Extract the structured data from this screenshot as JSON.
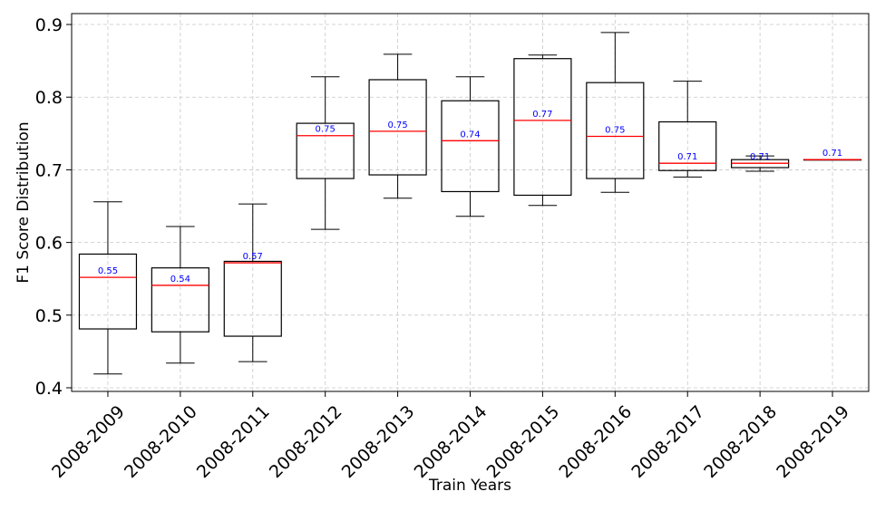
{
  "chart_data": {
    "type": "box",
    "xlabel": "Train Years",
    "ylabel": "F1 Score Distribution",
    "ylim": [
      0.395,
      0.915
    ],
    "yticks": [
      0.4,
      0.5,
      0.6,
      0.7,
      0.8,
      0.9
    ],
    "ytick_labels": [
      "0.4",
      "0.5",
      "0.6",
      "0.7",
      "0.8",
      "0.9"
    ],
    "grid": true,
    "colors": {
      "box": "#000000",
      "median": "#ff0000",
      "median_label": "#0000ff",
      "grid": "#c8c8c8"
    },
    "categories": [
      "2008-2009",
      "2008-2010",
      "2008-2011",
      "2008-2012",
      "2008-2013",
      "2008-2014",
      "2008-2015",
      "2008-2016",
      "2008-2017",
      "2008-2018",
      "2008-2019"
    ],
    "boxes": [
      {
        "whisker_low": 0.419,
        "q1": 0.481,
        "median": 0.552,
        "q3": 0.584,
        "whisker_high": 0.656,
        "median_label": "0.55"
      },
      {
        "whisker_low": 0.434,
        "q1": 0.477,
        "median": 0.541,
        "q3": 0.565,
        "whisker_high": 0.622,
        "median_label": "0.54"
      },
      {
        "whisker_low": 0.436,
        "q1": 0.471,
        "median": 0.572,
        "q3": 0.574,
        "whisker_high": 0.653,
        "median_label": "0.57"
      },
      {
        "whisker_low": 0.618,
        "q1": 0.688,
        "median": 0.747,
        "q3": 0.764,
        "whisker_high": 0.828,
        "median_label": "0.75"
      },
      {
        "whisker_low": 0.661,
        "q1": 0.693,
        "median": 0.753,
        "q3": 0.824,
        "whisker_high": 0.859,
        "median_label": "0.75"
      },
      {
        "whisker_low": 0.636,
        "q1": 0.67,
        "median": 0.74,
        "q3": 0.795,
        "whisker_high": 0.828,
        "median_label": "0.74"
      },
      {
        "whisker_low": 0.651,
        "q1": 0.665,
        "median": 0.768,
        "q3": 0.853,
        "whisker_high": 0.858,
        "median_label": "0.77"
      },
      {
        "whisker_low": 0.669,
        "q1": 0.688,
        "median": 0.746,
        "q3": 0.82,
        "whisker_high": 0.889,
        "median_label": "0.75"
      },
      {
        "whisker_low": 0.69,
        "q1": 0.699,
        "median": 0.709,
        "q3": 0.766,
        "whisker_high": 0.822,
        "median_label": "0.71"
      },
      {
        "whisker_low": 0.698,
        "q1": 0.703,
        "median": 0.709,
        "q3": 0.714,
        "whisker_high": 0.719,
        "median_label": "0.71"
      },
      {
        "whisker_low": 0.714,
        "q1": 0.714,
        "median": 0.714,
        "q3": 0.714,
        "whisker_high": 0.714,
        "median_label": "0.71"
      }
    ]
  }
}
